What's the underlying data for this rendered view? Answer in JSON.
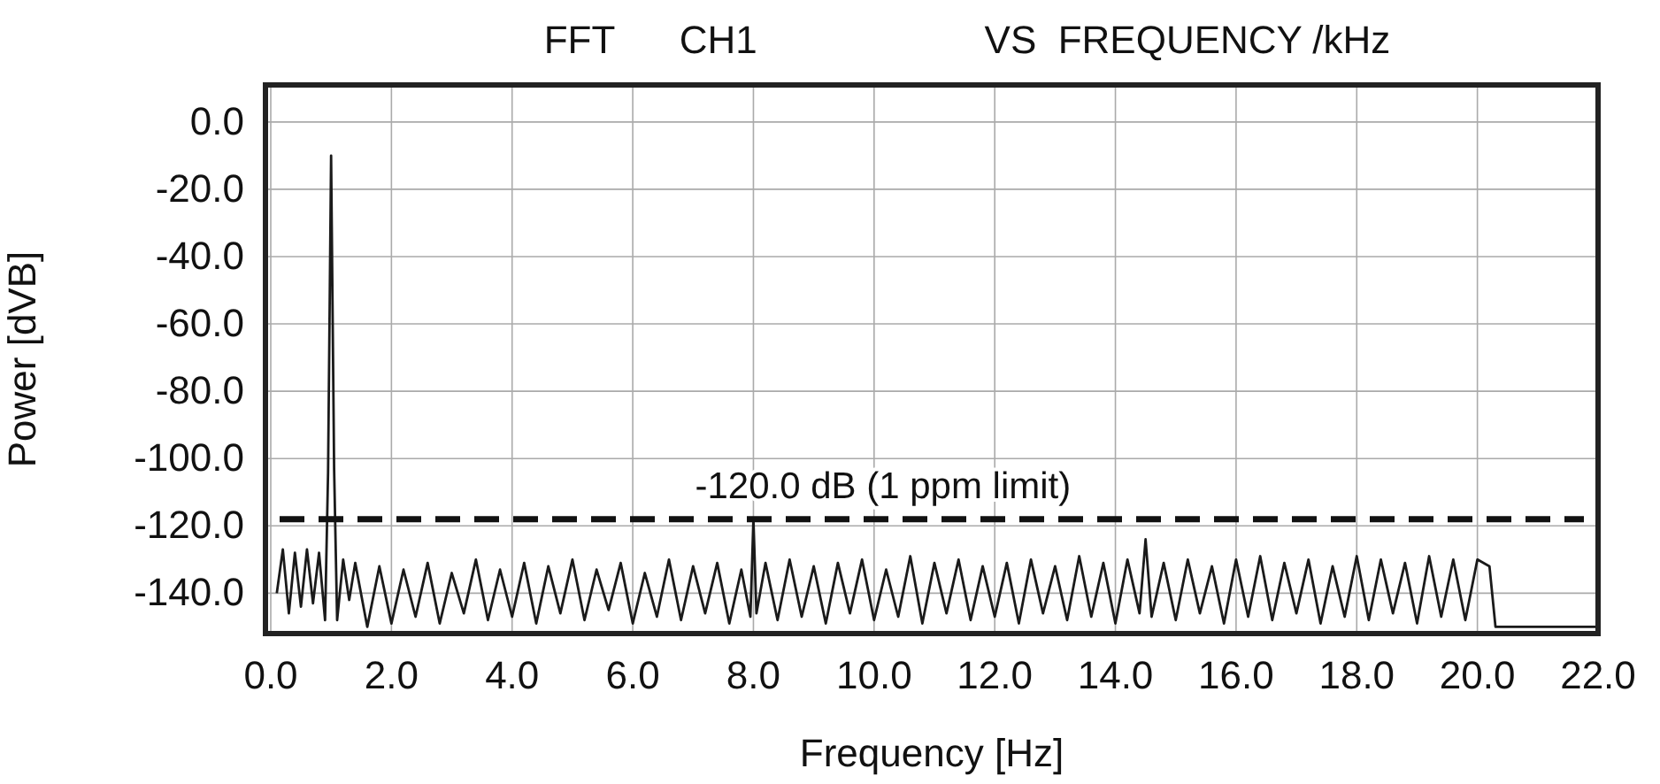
{
  "chart_data": {
    "type": "line",
    "title": "FFT      CH1                     VS  FREQUENCY /kHz",
    "xlabel": "Frequency [Hz]",
    "ylabel": "Power [dVB]",
    "xlim": [
      0,
      22
    ],
    "ylim": [
      -152,
      11
    ],
    "xticks": [
      {
        "value": 0,
        "label": "0.0"
      },
      {
        "value": 2,
        "label": "2.0"
      },
      {
        "value": 4,
        "label": "4.0"
      },
      {
        "value": 6,
        "label": "6.0"
      },
      {
        "value": 8,
        "label": "8.0"
      },
      {
        "value": 10,
        "label": "10.0"
      },
      {
        "value": 12,
        "label": "12.0"
      },
      {
        "value": 14,
        "label": "14.0"
      },
      {
        "value": 16,
        "label": "16.0"
      },
      {
        "value": 18,
        "label": "18.0"
      },
      {
        "value": 20,
        "label": "20.0"
      },
      {
        "value": 22,
        "label": "22.0"
      }
    ],
    "yticks": [
      {
        "value": 0,
        "label": "0.0"
      },
      {
        "value": -20,
        "label": "-20.0"
      },
      {
        "value": -40,
        "label": "-40.0"
      },
      {
        "value": -60,
        "label": "-60.0"
      },
      {
        "value": -80,
        "label": "-80.0"
      },
      {
        "value": -100,
        "label": "-100.0"
      },
      {
        "value": -120,
        "label": "-120.0"
      },
      {
        "value": -140,
        "label": "-140.0"
      }
    ],
    "grid": true,
    "ref_lines": [
      {
        "axis": "y",
        "value": -118,
        "label": "-120.0 dB (1 ppm limit)",
        "color": "#111111",
        "line_style": "dashed"
      }
    ],
    "series": [
      {
        "color": "#1a1a1a",
        "x": [
          0.1,
          0.2,
          0.3,
          0.4,
          0.5,
          0.6,
          0.7,
          0.8,
          0.9,
          0.95,
          1.0,
          1.05,
          1.1,
          1.2,
          1.3,
          1.4,
          1.6,
          1.8,
          2.0,
          2.2,
          2.4,
          2.6,
          2.8,
          3.0,
          3.2,
          3.4,
          3.6,
          3.8,
          4.0,
          4.2,
          4.4,
          4.6,
          4.8,
          5.0,
          5.2,
          5.4,
          5.6,
          5.8,
          6.0,
          6.2,
          6.4,
          6.6,
          6.8,
          7.0,
          7.2,
          7.4,
          7.6,
          7.8,
          7.95,
          8.0,
          8.05,
          8.2,
          8.4,
          8.6,
          8.8,
          9.0,
          9.2,
          9.4,
          9.6,
          9.8,
          10.0,
          10.2,
          10.4,
          10.6,
          10.8,
          11.0,
          11.2,
          11.4,
          11.6,
          11.8,
          12.0,
          12.2,
          12.4,
          12.6,
          12.8,
          13.0,
          13.2,
          13.4,
          13.6,
          13.8,
          14.0,
          14.2,
          14.4,
          14.5,
          14.6,
          14.8,
          15.0,
          15.2,
          15.4,
          15.6,
          15.8,
          16.0,
          16.2,
          16.4,
          16.6,
          16.8,
          17.0,
          17.2,
          17.4,
          17.6,
          17.8,
          18.0,
          18.2,
          18.4,
          18.6,
          18.8,
          19.0,
          19.2,
          19.4,
          19.6,
          19.8,
          20.0,
          20.2,
          20.3,
          22.0
        ],
        "values": [
          -140,
          -127,
          -146,
          -128,
          -144,
          -127,
          -143,
          -128,
          -148,
          -104,
          -10,
          -103,
          -148,
          -130,
          -142,
          -131,
          -150,
          -132,
          -149,
          -133,
          -147,
          -131,
          -149,
          -134,
          -146,
          -130,
          -148,
          -133,
          -147,
          -131,
          -149,
          -132,
          -146,
          -130,
          -148,
          -133,
          -145,
          -131,
          -149,
          -134,
          -147,
          -130,
          -148,
          -132,
          -146,
          -131,
          -149,
          -133,
          -147,
          -118,
          -146,
          -131,
          -148,
          -130,
          -147,
          -132,
          -149,
          -131,
          -146,
          -130,
          -148,
          -133,
          -147,
          -129,
          -149,
          -131,
          -146,
          -130,
          -148,
          -132,
          -147,
          -131,
          -149,
          -130,
          -146,
          -132,
          -148,
          -129,
          -147,
          -131,
          -149,
          -130,
          -146,
          -124,
          -147,
          -131,
          -148,
          -130,
          -146,
          -132,
          -149,
          -130,
          -147,
          -129,
          -148,
          -131,
          -146,
          -130,
          -149,
          -132,
          -147,
          -129,
          -148,
          -130,
          -146,
          -131,
          -149,
          -129,
          -147,
          -130,
          -148,
          -130,
          -132,
          -150,
          -150
        ]
      }
    ]
  }
}
